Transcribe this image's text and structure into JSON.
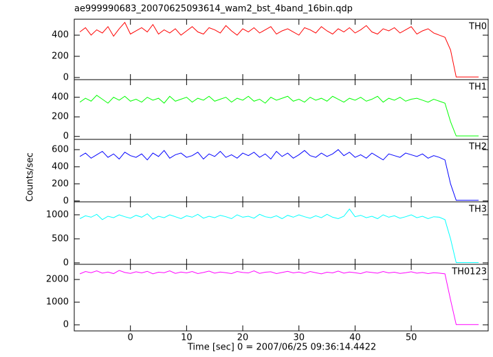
{
  "title": "ae999990683_20070625093614_wam2_bst_4band_16bin.qdp",
  "x_label": "Time [sec] 0 = 2007/06/25 09:36:14.4422",
  "y_label": "Counts/sec",
  "chart_data": [
    {
      "type": "line",
      "label": "TH0",
      "xlim": [
        -10,
        63.7
      ],
      "xticks": [
        0,
        10,
        20,
        30,
        40,
        50
      ],
      "ylim": [
        -20,
        550
      ],
      "yticks": [
        0,
        200,
        400
      ],
      "x": [
        -9,
        -8,
        -7,
        -6,
        -5,
        -4,
        -3,
        -2,
        -1,
        0,
        1,
        2,
        3,
        4,
        5,
        6,
        7,
        8,
        9,
        10,
        11,
        12,
        13,
        14,
        15,
        16,
        17,
        18,
        19,
        20,
        21,
        22,
        23,
        24,
        25,
        26,
        27,
        28,
        29,
        30,
        31,
        32,
        33,
        34,
        35,
        36,
        37,
        38,
        39,
        40,
        41,
        42,
        43,
        44,
        45,
        46,
        47,
        48,
        49,
        50,
        51,
        52,
        53,
        54,
        55,
        56,
        57,
        58,
        59,
        60,
        61,
        62
      ],
      "series": [
        {
          "color": "#ff0000",
          "values": [
            430,
            470,
            400,
            450,
            420,
            480,
            390,
            460,
            520,
            410,
            440,
            470,
            430,
            500,
            410,
            450,
            420,
            460,
            400,
            440,
            480,
            430,
            410,
            470,
            450,
            420,
            490,
            440,
            400,
            460,
            430,
            470,
            420,
            450,
            480,
            410,
            440,
            460,
            430,
            400,
            470,
            450,
            420,
            480,
            440,
            410,
            460,
            430,
            470,
            420,
            450,
            490,
            430,
            410,
            460,
            440,
            470,
            420,
            450,
            480,
            410,
            440,
            460,
            420,
            400,
            380,
            260,
            5,
            5,
            5,
            5,
            5
          ]
        }
      ]
    },
    {
      "type": "line",
      "label": "TH1",
      "xlim": [
        -10,
        63.7
      ],
      "xticks": [
        0,
        10,
        20,
        30,
        40,
        50
      ],
      "ylim": [
        -30,
        580
      ],
      "yticks": [
        0,
        200,
        400
      ],
      "x": [
        -9,
        -8,
        -7,
        -6,
        -5,
        -4,
        -3,
        -2,
        -1,
        0,
        1,
        2,
        3,
        4,
        5,
        6,
        7,
        8,
        9,
        10,
        11,
        12,
        13,
        14,
        15,
        16,
        17,
        18,
        19,
        20,
        21,
        22,
        23,
        24,
        25,
        26,
        27,
        28,
        29,
        30,
        31,
        32,
        33,
        34,
        35,
        36,
        37,
        38,
        39,
        40,
        41,
        42,
        43,
        44,
        45,
        46,
        47,
        48,
        49,
        50,
        51,
        52,
        53,
        54,
        55,
        56,
        57,
        58,
        59,
        60,
        61,
        62
      ],
      "series": [
        {
          "color": "#00ff00",
          "values": [
            350,
            390,
            360,
            420,
            380,
            340,
            400,
            370,
            410,
            360,
            380,
            350,
            400,
            370,
            390,
            340,
            410,
            360,
            380,
            400,
            350,
            390,
            370,
            410,
            360,
            380,
            400,
            350,
            390,
            370,
            410,
            360,
            380,
            340,
            400,
            370,
            390,
            410,
            360,
            380,
            350,
            400,
            370,
            390,
            360,
            410,
            380,
            350,
            390,
            370,
            400,
            360,
            380,
            410,
            350,
            390,
            370,
            400,
            360,
            380,
            390,
            370,
            350,
            380,
            360,
            340,
            150,
            5,
            5,
            5,
            5,
            5
          ]
        }
      ]
    },
    {
      "type": "line",
      "label": "TH2",
      "xlim": [
        -10,
        63.7
      ],
      "xticks": [
        0,
        10,
        20,
        30,
        40,
        50
      ],
      "ylim": [
        -10,
        720
      ],
      "yticks": [
        0,
        200,
        400,
        600
      ],
      "x": [
        -9,
        -8,
        -7,
        -6,
        -5,
        -4,
        -3,
        -2,
        -1,
        0,
        1,
        2,
        3,
        4,
        5,
        6,
        7,
        8,
        9,
        10,
        11,
        12,
        13,
        14,
        15,
        16,
        17,
        18,
        19,
        20,
        21,
        22,
        23,
        24,
        25,
        26,
        27,
        28,
        29,
        30,
        31,
        32,
        33,
        34,
        35,
        36,
        37,
        38,
        39,
        40,
        41,
        42,
        43,
        44,
        45,
        46,
        47,
        48,
        49,
        50,
        51,
        52,
        53,
        54,
        55,
        56,
        57,
        58,
        59,
        60,
        61,
        62
      ],
      "series": [
        {
          "color": "#0000ff",
          "values": [
            520,
            560,
            500,
            540,
            580,
            510,
            550,
            490,
            570,
            530,
            510,
            550,
            480,
            560,
            520,
            590,
            500,
            540,
            560,
            510,
            530,
            570,
            490,
            550,
            520,
            580,
            510,
            540,
            500,
            560,
            530,
            570,
            510,
            550,
            490,
            580,
            520,
            560,
            500,
            540,
            590,
            530,
            510,
            560,
            520,
            550,
            600,
            530,
            570,
            510,
            540,
            500,
            560,
            520,
            480,
            550,
            530,
            510,
            560,
            540,
            520,
            550,
            500,
            530,
            510,
            480,
            200,
            8,
            8,
            8,
            8,
            8
          ]
        }
      ]
    },
    {
      "type": "line",
      "label": "TH3",
      "xlim": [
        -10,
        63.7
      ],
      "xticks": [
        0,
        10,
        20,
        30,
        40,
        50
      ],
      "ylim": [
        -30,
        1270
      ],
      "yticks": [
        0,
        500,
        1000
      ],
      "x": [
        -9,
        -8,
        -7,
        -6,
        -5,
        -4,
        -3,
        -2,
        -1,
        0,
        1,
        2,
        3,
        4,
        5,
        6,
        7,
        8,
        9,
        10,
        11,
        12,
        13,
        14,
        15,
        16,
        17,
        18,
        19,
        20,
        21,
        22,
        23,
        24,
        25,
        26,
        27,
        28,
        29,
        30,
        31,
        32,
        33,
        34,
        35,
        36,
        37,
        38,
        39,
        40,
        41,
        42,
        43,
        44,
        45,
        46,
        47,
        48,
        49,
        50,
        51,
        52,
        53,
        54,
        55,
        56,
        57,
        58,
        59,
        60,
        61,
        62
      ],
      "series": [
        {
          "color": "#00ffff",
          "values": [
            920,
            980,
            950,
            1010,
            900,
            970,
            940,
            1000,
            960,
            930,
            990,
            950,
            1020,
            910,
            970,
            940,
            1000,
            960,
            920,
            980,
            950,
            1010,
            930,
            970,
            940,
            990,
            960,
            920,
            1000,
            950,
            970,
            930,
            1010,
            960,
            940,
            980,
            920,
            990,
            950,
            1000,
            960,
            930,
            980,
            940,
            1010,
            950,
            920,
            970,
            1120,
            960,
            990,
            940,
            970,
            920,
            1000,
            950,
            980,
            930,
            960,
            1000,
            940,
            970,
            920,
            960,
            950,
            900,
            500,
            5,
            5,
            5,
            5,
            5
          ]
        }
      ]
    },
    {
      "type": "line",
      "label": "TH0123",
      "xlim": [
        -10,
        63.7
      ],
      "xticks": [
        0,
        10,
        20,
        30,
        40,
        50
      ],
      "ylim": [
        -270,
        2670
      ],
      "yticks": [
        0,
        1000,
        2000
      ],
      "x": [
        -9,
        -8,
        -7,
        -6,
        -5,
        -4,
        -3,
        -2,
        -1,
        0,
        1,
        2,
        3,
        4,
        5,
        6,
        7,
        8,
        9,
        10,
        11,
        12,
        13,
        14,
        15,
        16,
        17,
        18,
        19,
        20,
        21,
        22,
        23,
        24,
        25,
        26,
        27,
        28,
        29,
        30,
        31,
        32,
        33,
        34,
        35,
        36,
        37,
        38,
        39,
        40,
        41,
        42,
        43,
        44,
        45,
        46,
        47,
        48,
        49,
        50,
        51,
        52,
        53,
        54,
        55,
        56,
        57,
        58,
        59,
        60,
        61,
        62
      ],
      "series": [
        {
          "color": "#ff00ff",
          "values": [
            2250,
            2350,
            2300,
            2380,
            2280,
            2330,
            2260,
            2400,
            2310,
            2270,
            2340,
            2290,
            2360,
            2250,
            2320,
            2300,
            2380,
            2270,
            2330,
            2290,
            2350,
            2260,
            2310,
            2370,
            2280,
            2330,
            2300,
            2260,
            2350,
            2310,
            2290,
            2380,
            2270,
            2320,
            2340,
            2260,
            2310,
            2360,
            2290,
            2330,
            2270,
            2350,
            2300,
            2250,
            2320,
            2290,
            2370,
            2280,
            2330,
            2300,
            2260,
            2340,
            2310,
            2280,
            2350,
            2290,
            2320,
            2270,
            2300,
            2340,
            2280,
            2310,
            2260,
            2300,
            2280,
            2250,
            1100,
            10,
            10,
            10,
            10,
            10
          ]
        }
      ]
    }
  ]
}
